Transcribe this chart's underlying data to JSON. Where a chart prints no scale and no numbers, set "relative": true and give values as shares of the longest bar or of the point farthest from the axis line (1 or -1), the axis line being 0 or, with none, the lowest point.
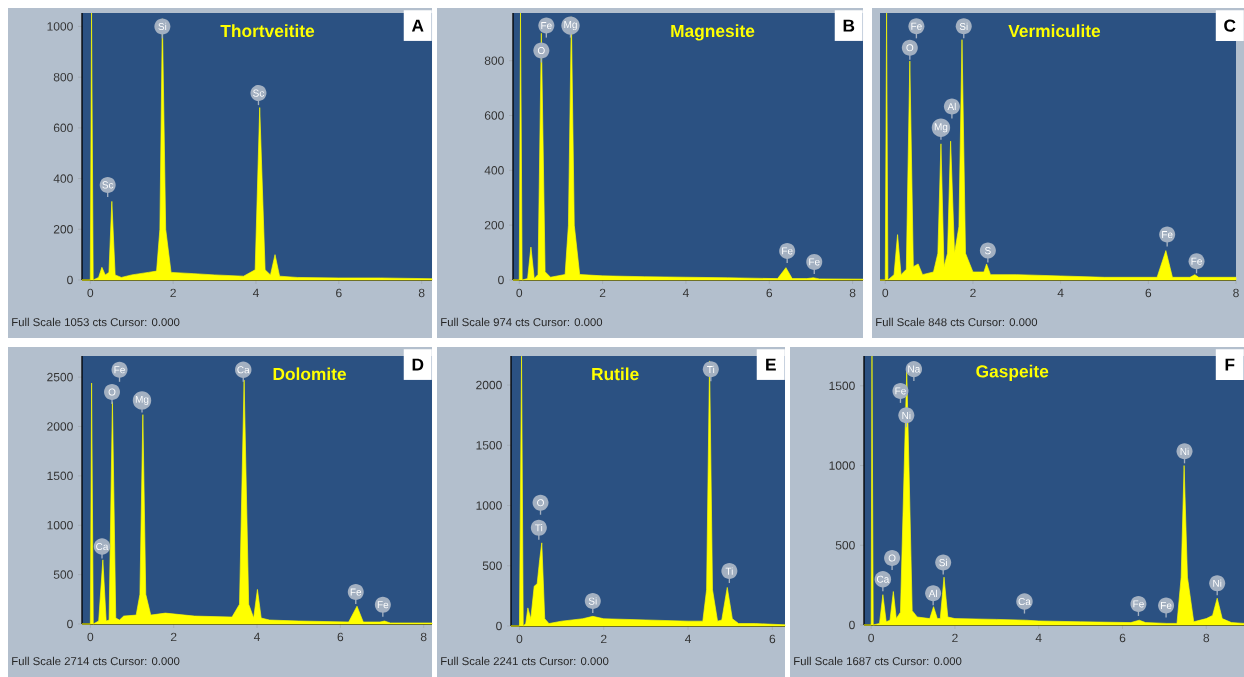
{
  "chart_data": [
    {
      "type": "area",
      "title": "Thortveitite",
      "color": "#ffff00",
      "xlim": [
        -0.2,
        8.25
      ],
      "ylim": [
        0,
        1053
      ],
      "xticks": [
        0,
        2,
        4,
        6,
        8
      ],
      "yticks": [
        0,
        200,
        400,
        600,
        800,
        1000
      ],
      "x": [
        -0.2,
        0.0,
        0.03,
        0.07,
        0.2,
        0.28,
        0.36,
        0.45,
        0.52,
        0.6,
        0.75,
        1.0,
        1.4,
        1.6,
        1.68,
        1.74,
        1.82,
        1.95,
        2.5,
        3.0,
        3.7,
        3.98,
        4.09,
        4.22,
        4.35,
        4.46,
        4.57,
        5.0,
        6.0,
        7.0,
        8.25
      ],
      "values": [
        0,
        0,
        1053,
        0,
        10,
        50,
        20,
        30,
        310,
        20,
        10,
        20,
        30,
        35,
        200,
        1030,
        200,
        30,
        25,
        20,
        15,
        40,
        680,
        40,
        20,
        100,
        15,
        10,
        8,
        8,
        5
      ],
      "annotations": [
        "A",
        "Full Scale 1053 cts Cursor: 0.000",
        {
          "text": "Si",
          "x": 1.74,
          "y": 1000
        },
        {
          "text": "Sc",
          "x": 0.42,
          "y": 375
        },
        {
          "text": "Sc",
          "x": 4.06,
          "y": 737
        }
      ]
    },
    {
      "type": "area",
      "title": "Magnesite",
      "color": "#ffff00",
      "xlim": [
        -0.15,
        8.25
      ],
      "ylim": [
        0,
        974
      ],
      "xticks": [
        0,
        2,
        4,
        6,
        8
      ],
      "yticks": [
        0,
        200,
        400,
        600,
        800
      ],
      "x": [
        -0.15,
        0.0,
        0.03,
        0.07,
        0.2,
        0.28,
        0.36,
        0.45,
        0.53,
        0.62,
        0.75,
        1.1,
        1.18,
        1.25,
        1.32,
        1.45,
        2.0,
        3.0,
        4.0,
        5.0,
        6.2,
        6.4,
        6.55,
        6.9,
        7.06,
        7.2,
        8.25
      ],
      "values": [
        0,
        0,
        974,
        0,
        5,
        120,
        5,
        20,
        900,
        30,
        10,
        20,
        200,
        960,
        200,
        20,
        15,
        12,
        10,
        8,
        5,
        45,
        5,
        5,
        8,
        4,
        3
      ],
      "annotations": [
        "B",
        "Full Scale 974 cts Cursor: 0.000",
        {
          "text": "Fe",
          "x": 0.65,
          "y": 928
        },
        {
          "text": "O",
          "x": 0.53,
          "y": 837
        },
        {
          "text": "Mg",
          "x": 1.23,
          "y": 928
        },
        {
          "text": "Fe",
          "x": 6.43,
          "y": 106
        },
        {
          "text": "Fe",
          "x": 7.08,
          "y": 66
        }
      ]
    },
    {
      "type": "area",
      "title": "Vermiculite",
      "color": "#ffff00",
      "relative": true,
      "tick_labels": "x",
      "xlim": [
        -0.12,
        8.0
      ],
      "xticks": [
        0,
        2,
        4,
        6,
        8
      ],
      "x": [
        -0.12,
        0.0,
        0.03,
        0.06,
        0.2,
        0.28,
        0.36,
        0.48,
        0.56,
        0.64,
        0.75,
        0.85,
        1.1,
        1.2,
        1.27,
        1.34,
        1.42,
        1.49,
        1.58,
        1.68,
        1.75,
        1.83,
        2.0,
        2.25,
        2.31,
        2.4,
        3.0,
        4.0,
        5.0,
        6.2,
        6.4,
        6.55,
        6.95,
        7.06,
        7.15,
        8.0
      ],
      "values": [
        0,
        0,
        1,
        0,
        0.02,
        0.17,
        0.02,
        0.04,
        0.82,
        0.05,
        0.06,
        0.02,
        0.03,
        0.1,
        0.51,
        0.05,
        0.1,
        0.52,
        0.1,
        0.2,
        0.9,
        0.1,
        0.03,
        0.03,
        0.06,
        0.02,
        0.02,
        0.015,
        0.01,
        0.01,
        0.11,
        0.01,
        0.01,
        0.02,
        0.01,
        0.01
      ],
      "annotations": [
        "C",
        "Full Scale 848 cts Cursor: 0.000",
        {
          "text": "Fe",
          "x": 0.71,
          "y": 0.95
        },
        {
          "text": "O",
          "x": 0.56,
          "y": 0.87
        },
        {
          "text": "Si",
          "x": 1.79,
          "y": 0.95
        },
        {
          "text": "Al",
          "x": 1.52,
          "y": 0.65
        },
        {
          "text": "Mg",
          "x": 1.27,
          "y": 0.57
        },
        {
          "text": "S",
          "x": 2.34,
          "y": 0.11
        },
        {
          "text": "Fe",
          "x": 6.43,
          "y": 0.17
        },
        {
          "text": "Fe",
          "x": 7.1,
          "y": 0.07
        }
      ]
    },
    {
      "type": "area",
      "title": "Dolomite",
      "color": "#ffff00",
      "xlim": [
        -0.2,
        8.2
      ],
      "ylim": [
        0,
        2714
      ],
      "xticks": [
        0,
        2,
        4,
        6,
        8
      ],
      "yticks": [
        0,
        500,
        1000,
        1500,
        2000,
        2500
      ],
      "x": [
        -0.2,
        0.0,
        0.03,
        0.07,
        0.2,
        0.3,
        0.38,
        0.45,
        0.53,
        0.61,
        0.7,
        0.8,
        1.1,
        1.19,
        1.26,
        1.33,
        1.45,
        1.8,
        2.5,
        3.4,
        3.58,
        3.69,
        3.8,
        3.92,
        4.01,
        4.1,
        4.3,
        5.0,
        6.2,
        6.4,
        6.55,
        6.95,
        7.06,
        7.2,
        8.2
      ],
      "values": [
        0,
        0,
        2440,
        0,
        30,
        650,
        30,
        40,
        2250,
        60,
        40,
        80,
        90,
        300,
        2120,
        300,
        90,
        110,
        80,
        70,
        200,
        2470,
        200,
        60,
        350,
        60,
        40,
        30,
        20,
        180,
        20,
        20,
        30,
        10,
        10
      ],
      "annotations": [
        "D",
        "Full Scale 2714 cts Cursor: 0.000",
        {
          "text": "Fe",
          "x": 0.7,
          "y": 2574
        },
        {
          "text": "O",
          "x": 0.52,
          "y": 2349
        },
        {
          "text": "Mg",
          "x": 1.24,
          "y": 2264
        },
        {
          "text": "Ca",
          "x": 3.67,
          "y": 2574
        },
        {
          "text": "Ca",
          "x": 0.28,
          "y": 784
        },
        {
          "text": "Fe",
          "x": 6.37,
          "y": 323
        },
        {
          "text": "Fe",
          "x": 7.02,
          "y": 195
        }
      ]
    },
    {
      "type": "area",
      "title": "Rutile",
      "color": "#ffff00",
      "xlim": [
        -0.2,
        6.3
      ],
      "ylim": [
        0,
        2241
      ],
      "xticks": [
        0,
        2,
        4,
        6
      ],
      "yticks": [
        0,
        500,
        1000,
        1500,
        2000
      ],
      "x": [
        -0.2,
        0.0,
        0.05,
        0.09,
        0.15,
        0.2,
        0.27,
        0.35,
        0.42,
        0.48,
        0.53,
        0.6,
        0.7,
        1.0,
        1.5,
        1.74,
        2.0,
        3.0,
        4.0,
        4.35,
        4.44,
        4.51,
        4.58,
        4.7,
        4.8,
        4.93,
        5.05,
        5.2,
        5.6,
        6.3
      ],
      "values": [
        0,
        0,
        2240,
        0,
        20,
        150,
        60,
        330,
        350,
        550,
        690,
        60,
        20,
        40,
        60,
        80,
        60,
        50,
        40,
        40,
        300,
        2200,
        300,
        40,
        50,
        320,
        60,
        20,
        20,
        10
      ],
      "annotations": [
        "E",
        "Full Scale 2241 cts Cursor: 0.000",
        {
          "text": "Ti",
          "x": 4.54,
          "y": 2130
        },
        {
          "text": "O",
          "x": 0.5,
          "y": 1023
        },
        {
          "text": "Ti",
          "x": 0.46,
          "y": 816
        },
        {
          "text": "Si",
          "x": 1.74,
          "y": 207
        },
        {
          "text": "Ti",
          "x": 4.98,
          "y": 456
        }
      ]
    },
    {
      "type": "area",
      "title": "Gaspeite",
      "color": "#ffff00",
      "xlim": [
        -0.17,
        8.9
      ],
      "ylim": [
        0,
        1687
      ],
      "xticks": [
        0,
        2,
        4,
        6,
        8
      ],
      "yticks": [
        0,
        500,
        1000,
        1500
      ],
      "x": [
        -0.17,
        0.0,
        0.02,
        0.05,
        0.2,
        0.28,
        0.36,
        0.45,
        0.53,
        0.6,
        0.7,
        0.85,
        0.98,
        1.1,
        1.4,
        1.49,
        1.58,
        1.65,
        1.74,
        1.83,
        2.0,
        3.0,
        3.69,
        4.0,
        5.0,
        6.2,
        6.4,
        6.55,
        7.06,
        7.3,
        7.4,
        7.47,
        7.55,
        7.7,
        8.0,
        8.15,
        8.26,
        8.38,
        8.6,
        8.9
      ],
      "values": [
        0,
        0,
        1687,
        0,
        10,
        190,
        20,
        30,
        210,
        40,
        80,
        1600,
        90,
        50,
        40,
        115,
        40,
        40,
        300,
        50,
        40,
        35,
        30,
        25,
        20,
        15,
        30,
        15,
        10,
        10,
        300,
        1000,
        300,
        20,
        40,
        60,
        168,
        40,
        15,
        10
      ],
      "annotations": [
        "F",
        "Full Scale 1687 cts Cursor: 0.000",
        {
          "text": "Na",
          "x": 1.02,
          "y": 1605
        },
        {
          "text": "Fe",
          "x": 0.7,
          "y": 1468
        },
        {
          "text": "Ni",
          "x": 0.84,
          "y": 1315
        },
        {
          "text": "O",
          "x": 0.5,
          "y": 420
        },
        {
          "text": "Ca",
          "x": 0.28,
          "y": 287
        },
        {
          "text": "Al",
          "x": 1.48,
          "y": 199
        },
        {
          "text": "Si",
          "x": 1.72,
          "y": 392
        },
        {
          "text": "Ca",
          "x": 3.66,
          "y": 147
        },
        {
          "text": "Fe",
          "x": 6.38,
          "y": 132
        },
        {
          "text": "Fe",
          "x": 7.04,
          "y": 122
        },
        {
          "text": "Ni",
          "x": 7.48,
          "y": 1089
        },
        {
          "text": "Ni",
          "x": 8.26,
          "y": 262
        }
      ]
    }
  ]
}
